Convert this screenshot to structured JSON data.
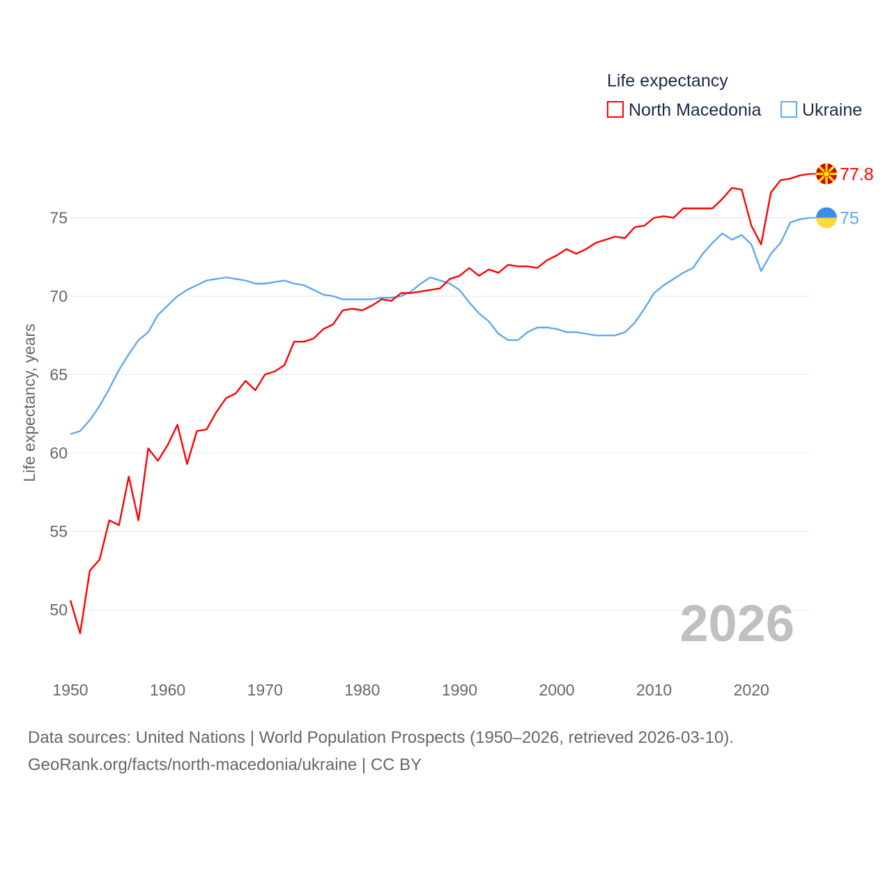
{
  "chart_data": {
    "type": "line",
    "title": "",
    "ylabel": "Life expectancy, years",
    "xlabel": "",
    "xlim": [
      1950,
      2026
    ],
    "ylim": [
      46,
      80
    ],
    "grid": true,
    "xticks": [
      1950,
      1960,
      1970,
      1980,
      1990,
      2000,
      2010,
      2020
    ],
    "yticks": [
      50,
      55,
      60,
      65,
      70,
      75
    ],
    "legend": {
      "title": "Life expectancy",
      "placement": "top-right"
    },
    "year_watermark": "2026",
    "x_start": 1950,
    "series": [
      {
        "name": "North Macedonia",
        "color": "#ff0000",
        "end_label": "77.8",
        "flag": "north-macedonia-flag",
        "values": [
          50.6,
          48.5,
          52.5,
          53.2,
          55.7,
          55.4,
          58.5,
          55.7,
          60.3,
          59.5,
          60.5,
          61.8,
          59.3,
          61.4,
          61.5,
          62.6,
          63.5,
          63.8,
          64.6,
          64.0,
          65.0,
          65.2,
          65.6,
          67.1,
          67.1,
          67.3,
          67.9,
          68.2,
          69.1,
          69.2,
          69.1,
          69.4,
          69.8,
          69.7,
          70.2,
          70.2,
          70.3,
          70.4,
          70.5,
          71.1,
          71.3,
          71.8,
          71.3,
          71.7,
          71.5,
          72.0,
          71.9,
          71.9,
          71.8,
          72.3,
          72.6,
          73.0,
          72.7,
          73.0,
          73.4,
          73.6,
          73.8,
          73.7,
          74.4,
          74.5,
          75.0,
          75.1,
          75.0,
          75.6,
          75.6,
          75.6,
          75.6,
          76.2,
          76.9,
          76.8,
          74.5,
          73.3,
          76.6,
          77.4,
          77.5,
          77.7,
          77.8
        ]
      },
      {
        "name": "Ukraine",
        "color": "#5ea8ee",
        "end_label": "75",
        "flag": "ukraine-flag",
        "values": [
          61.2,
          61.4,
          62.1,
          63.0,
          64.1,
          65.3,
          66.3,
          67.2,
          67.7,
          68.8,
          69.4,
          70.0,
          70.4,
          70.7,
          71.0,
          71.1,
          71.2,
          71.1,
          71.0,
          70.8,
          70.8,
          70.9,
          71.0,
          70.8,
          70.7,
          70.4,
          70.1,
          70.0,
          69.8,
          69.8,
          69.8,
          69.8,
          69.9,
          69.9,
          70.0,
          70.3,
          70.8,
          71.2,
          71.0,
          70.8,
          70.4,
          69.6,
          68.9,
          68.4,
          67.6,
          67.2,
          67.2,
          67.7,
          68.0,
          68.0,
          67.9,
          67.7,
          67.7,
          67.6,
          67.5,
          67.5,
          67.5,
          67.7,
          68.3,
          69.2,
          70.2,
          70.7,
          71.1,
          71.5,
          71.8,
          72.7,
          73.4,
          74.0,
          73.6,
          73.9,
          73.3,
          71.6,
          72.7,
          73.4,
          74.7,
          74.9,
          75.0
        ]
      }
    ]
  },
  "footer": {
    "line1": "Data sources: United Nations | World Population Prospects (1950–2026, retrieved 2026-03-10).",
    "line2": "GeoRank.org/facts/north-macedonia/ukraine | CC BY"
  }
}
